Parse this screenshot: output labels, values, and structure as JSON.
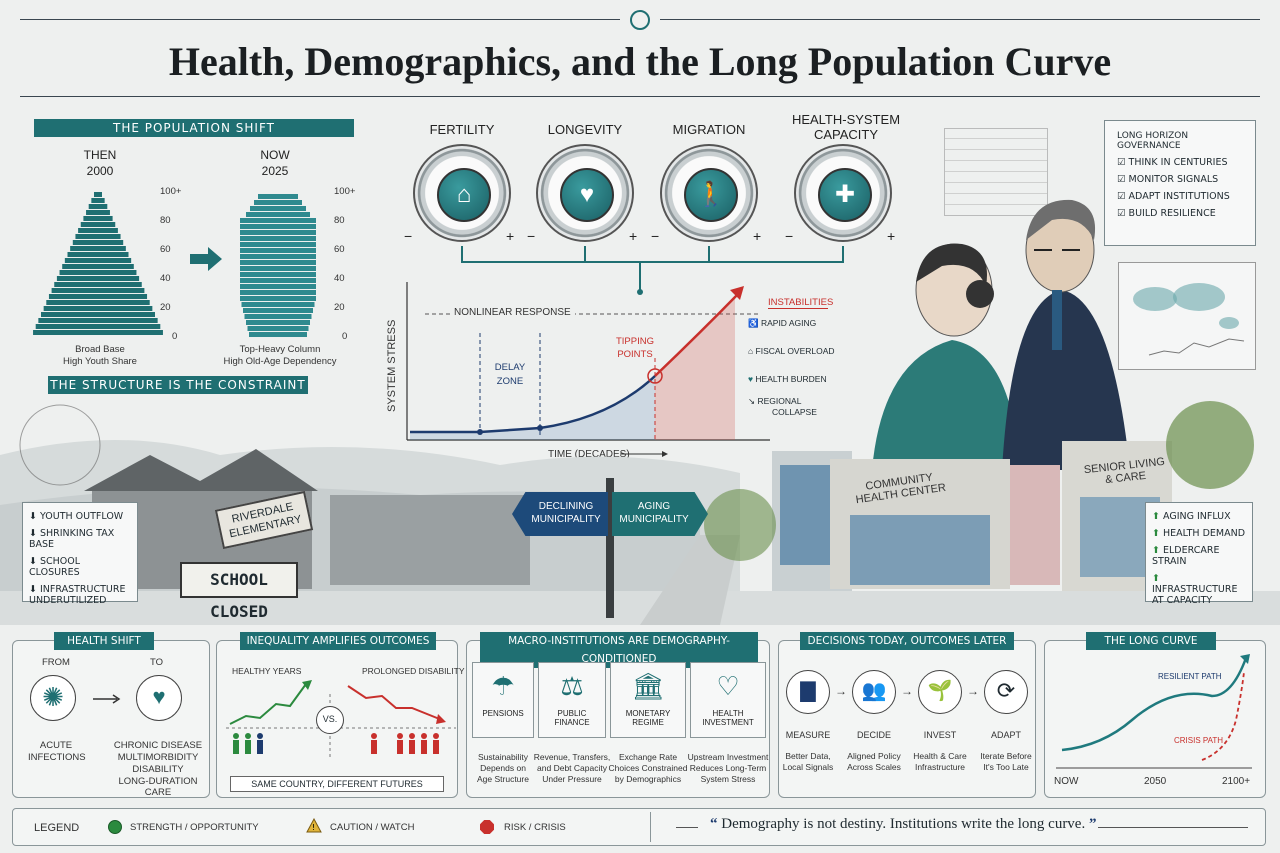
{
  "title": "Health, Demographics, and the Long Population Curve",
  "colors": {
    "teal": "#1f6f72",
    "red": "#c8302c",
    "navy": "#1d3b6e",
    "green": "#2b8a3e"
  },
  "population_shift": {
    "header": "THE POPULATION SHIFT",
    "then_label": "THEN",
    "then_year": "2000",
    "now_label": "NOW",
    "now_year": "2025",
    "ages": [
      "100+",
      "80",
      "60",
      "40",
      "20",
      "0"
    ],
    "then_caption_1": "Broad Base",
    "then_caption_2": "High Youth Share",
    "now_caption_1": "Top-Heavy Column",
    "now_caption_2": "High Old-Age Dependency",
    "footer": "THE STRUCTURE IS THE CONSTRAINT"
  },
  "dials": [
    {
      "label": "FERTILITY",
      "icon": "stroller-icon",
      "glyph": "⌂"
    },
    {
      "label": "LONGEVITY",
      "icon": "heartbeat-icon",
      "glyph": "♥"
    },
    {
      "label": "MIGRATION",
      "icon": "walking-person-icon",
      "glyph": "🚶"
    },
    {
      "label": "HEALTH-SYSTEM CAPACITY",
      "icon": "medical-cross-icon",
      "glyph": "✚"
    }
  ],
  "dial_minus": "−",
  "dial_plus": "+",
  "stress_chart": {
    "ylabel": "SYSTEM STRESS",
    "xlabel": "TIME (DECADES)",
    "nonlinear": "NONLINEAR RESPONSE",
    "delay_1": "DELAY",
    "delay_2": "ZONE",
    "tipping_1": "TIPPING",
    "tipping_2": "POINTS"
  },
  "instabilities": {
    "header": "INSTABILITIES",
    "items": [
      {
        "label": "RAPID AGING",
        "icon": "elderly-cane-icon"
      },
      {
        "label": "FISCAL OVERLOAD",
        "icon": "bank-icon"
      },
      {
        "label": "HEALTH BURDEN",
        "icon": "heart-pulse-icon"
      },
      {
        "label": "REGIONAL COLLAPSE",
        "icon": "declining-chart-icon"
      }
    ]
  },
  "governance": {
    "header": "LONG HORIZON GOVERNANCE",
    "items": [
      "THINK IN CENTURIES",
      "MONITOR SIGNALS",
      "ADAPT INSTITUTIONS",
      "BUILD RESILIENCE"
    ]
  },
  "scene": {
    "school_sign_1": "RIVERDALE",
    "school_sign_2": "ELEMENTARY",
    "school_closed": "SCHOOL CLOSED",
    "declining_1": "DECLINING",
    "declining_2": "MUNICIPALITY",
    "aging_1": "AGING",
    "aging_2": "MUNICIPALITY",
    "community_1": "COMMUNITY",
    "community_2": "HEALTH CENTER",
    "senior_1": "SENIOR LIVING",
    "senior_2": "& CARE"
  },
  "decline_list": [
    "YOUTH OUTFLOW",
    "SHRINKING TAX BASE",
    "SCHOOL CLOSURES",
    "INFRASTRUCTURE UNDERUTILIZED"
  ],
  "aging_list": [
    "AGING INFLUX",
    "HEALTH DEMAND",
    "ELDERCARE STRAIN",
    "INFRASTRUCTURE AT CAPACITY"
  ],
  "health_shift": {
    "header": "HEALTH SHIFT",
    "from": "FROM",
    "to": "TO",
    "from_1": "ACUTE",
    "from_2": "INFECTIONS",
    "to_lines": [
      "CHRONIC DISEASE",
      "MULTIMORBIDITY",
      "DISABILITY",
      "LONG-DURATION CARE"
    ]
  },
  "inequality": {
    "header": "INEQUALITY AMPLIFIES OUTCOMES",
    "left": "HEALTHY YEARS",
    "right": "PROLONGED DISABILITY",
    "vs": "VS.",
    "footer": "SAME COUNTRY, DIFFERENT FUTURES"
  },
  "macro": {
    "header": "MACRO-INSTITUTIONS ARE DEMOGRAPHY-CONDITIONED",
    "cards": [
      {
        "title": "PENSIONS",
        "icon": "umbrella-icon",
        "glyph": "☂",
        "d1": "Sustainability",
        "d2": "Depends on",
        "d3": "Age Structure"
      },
      {
        "title": "PUBLIC FINANCE",
        "icon": "scales-icon",
        "glyph": "⚖",
        "d1": "Revenue, Transfers,",
        "d2": "and Debt Capacity",
        "d3": "Under Pressure"
      },
      {
        "title": "MONETARY REGIME",
        "icon": "bank-icon",
        "glyph": "🏛",
        "d1": "Exchange Rate",
        "d2": "Choices Constrained",
        "d3": "by Demographics"
      },
      {
        "title": "HEALTH INVESTMENT",
        "icon": "heart-cross-icon",
        "glyph": "♡",
        "d1": "Upstream Investment",
        "d2": "Reduces Long-Term",
        "d3": "System Stress"
      }
    ]
  },
  "decisions": {
    "header": "DECISIONS TODAY, OUTCOMES LATER",
    "steps": [
      {
        "title": "MEASURE",
        "icon": "bar-chart-icon",
        "glyph": "▇",
        "d1": "Better Data,",
        "d2": "Local Signals"
      },
      {
        "title": "DECIDE",
        "icon": "meeting-icon",
        "glyph": "👥",
        "d1": "Aligned Policy",
        "d2": "Across Scales"
      },
      {
        "title": "INVEST",
        "icon": "seedling-icon",
        "glyph": "🌱",
        "d1": "Health & Care",
        "d2": "Infrastructure"
      },
      {
        "title": "ADAPT",
        "icon": "cycle-arrows-icon",
        "glyph": "⟳",
        "d1": "Iterate Before",
        "d2": "It's Too Late"
      }
    ]
  },
  "long_curve": {
    "header": "THE LONG CURVE",
    "resilient": "RESILIENT PATH",
    "crisis": "CRISIS PATH",
    "ticks": [
      "NOW",
      "2050",
      "2100+"
    ]
  },
  "legend": {
    "label": "LEGEND",
    "items": [
      {
        "label": "STRENGTH / OPPORTUNITY",
        "color": "#2b8a3e",
        "icon": "green-circle-icon"
      },
      {
        "label": "CAUTION / WATCH",
        "color": "#e0b43a",
        "icon": "warning-triangle-icon"
      },
      {
        "label": "RISK / CRISIS",
        "color": "#c8302c",
        "icon": "red-octagon-icon"
      }
    ],
    "quote": "Demography is not destiny. Institutions write the long curve.",
    "quote_open": "“",
    "quote_close": "”"
  }
}
